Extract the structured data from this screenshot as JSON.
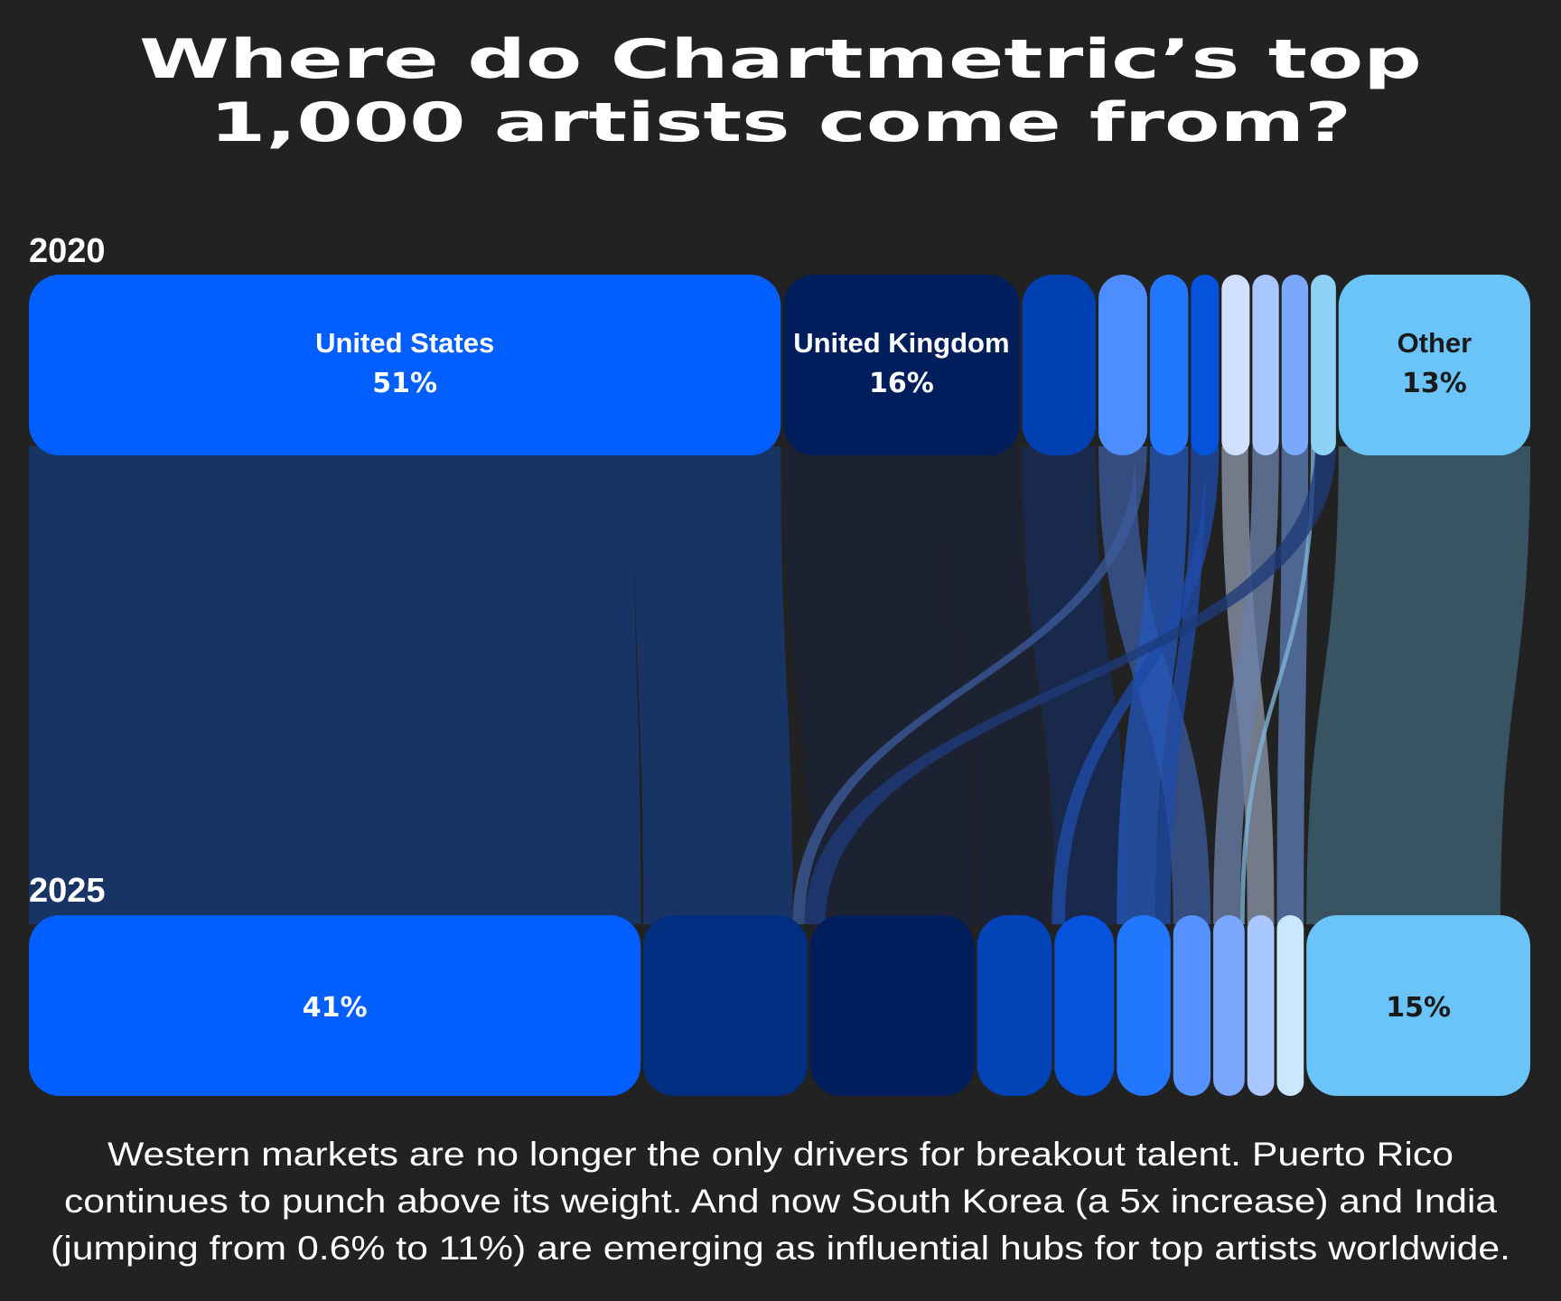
{
  "title": {
    "line1": "Where do Chartmetric’s top",
    "line2": "1,000 artists come from?"
  },
  "caption": {
    "line1": "Western markets are no longer the only drivers for breakout talent. Puerto Rico",
    "line2": "continues to punch above its weight. And now South Korea (a 5x increase) and India",
    "line3": "(jumping from 0.6% to 11%) are emerging as influential hubs for top artists worldwide."
  },
  "chart_data": {
    "type": "sankey",
    "years": [
      "2020",
      "2025"
    ],
    "nodes_2020": [
      {
        "id": "us",
        "name": "United States",
        "pct_label": "51%",
        "share": 51,
        "color": "#005ffe",
        "text_color": "#ffffff"
      },
      {
        "id": "uk",
        "name": "United Kingdom",
        "pct_label": "16%",
        "share": 16,
        "color": "#001e5b",
        "text_color": "#ffffff"
      },
      {
        "id": "c3",
        "name": "",
        "pct_label": "",
        "share": 5,
        "color": "#0040b0",
        "text_color": "#ffffff"
      },
      {
        "id": "c4",
        "name": "",
        "pct_label": "",
        "share": 3.3,
        "color": "#4d8dff",
        "text_color": "#ffffff"
      },
      {
        "id": "c5",
        "name": "",
        "pct_label": "",
        "share": 2.6,
        "color": "#2277ff",
        "text_color": "#ffffff"
      },
      {
        "id": "c6",
        "name": "",
        "pct_label": "",
        "share": 1.9,
        "color": "#0552dd",
        "text_color": "#ffffff"
      },
      {
        "id": "c7",
        "name": "",
        "pct_label": "",
        "share": 1.9,
        "color": "#d2e0ff",
        "text_color": "#111111"
      },
      {
        "id": "c8",
        "name": "",
        "pct_label": "",
        "share": 1.8,
        "color": "#a8c6ff",
        "text_color": "#111111"
      },
      {
        "id": "c9",
        "name": "",
        "pct_label": "",
        "share": 1.8,
        "color": "#7aa8ff",
        "text_color": "#111111"
      },
      {
        "id": "c10",
        "name": "",
        "pct_label": "",
        "share": 1.7,
        "color": "#8ed2f7",
        "text_color": "#111111"
      },
      {
        "id": "other",
        "name": "Other",
        "pct_label": "13%",
        "share": 13,
        "color": "#6ac4f8",
        "text_color": "#1a1a1a"
      }
    ],
    "nodes_2025": [
      {
        "id": "us",
        "name": "",
        "pct_label": "41%",
        "share": 41,
        "color": "#005ffe",
        "text_color": "#ffffff"
      },
      {
        "id": "c3",
        "name": "",
        "pct_label": "",
        "share": 11,
        "color": "#002e80",
        "text_color": "#ffffff"
      },
      {
        "id": "uk",
        "name": "",
        "pct_label": "",
        "share": 11,
        "color": "#001e5b",
        "text_color": "#ffffff"
      },
      {
        "id": "c6",
        "name": "",
        "pct_label": "",
        "share": 5,
        "color": "#0044b8",
        "text_color": "#ffffff"
      },
      {
        "id": "c5",
        "name": "",
        "pct_label": "",
        "share": 4,
        "color": "#0552dd",
        "text_color": "#ffffff"
      },
      {
        "id": "c4",
        "name": "",
        "pct_label": "",
        "share": 3.6,
        "color": "#2277ff",
        "text_color": "#ffffff"
      },
      {
        "id": "c8",
        "name": "",
        "pct_label": "",
        "share": 2.5,
        "color": "#5592ff",
        "text_color": "#111111"
      },
      {
        "id": "c9",
        "name": "",
        "pct_label": "",
        "share": 2.1,
        "color": "#7aa8ff",
        "text_color": "#111111"
      },
      {
        "id": "c7",
        "name": "",
        "pct_label": "",
        "share": 1.8,
        "color": "#a8c6ff",
        "text_color": "#111111"
      },
      {
        "id": "c10",
        "name": "",
        "pct_label": "",
        "share": 1.8,
        "color": "#c9e8fc",
        "text_color": "#111111"
      },
      {
        "id": "other",
        "name": "",
        "pct_label": "15%",
        "share": 15,
        "color": "#6ac4f8",
        "text_color": "#1a1a1a"
      }
    ],
    "flows": [
      {
        "from": "us",
        "to": "us",
        "share": 41,
        "color": "#163a78"
      },
      {
        "from": "us",
        "to": "c3",
        "share": 10,
        "color": "#163a78"
      },
      {
        "from": "uk",
        "to": "uk",
        "share": 11,
        "color": "#1b2237"
      },
      {
        "from": "uk",
        "to": "c6",
        "share": 5,
        "color": "#1b2237"
      },
      {
        "from": "c3",
        "to": "c5",
        "share": 5,
        "color": "#162b58"
      },
      {
        "from": "c4",
        "to": "c8",
        "share": 2.5,
        "color": "#3a5a98"
      },
      {
        "from": "c4",
        "to": "c3",
        "share": 0.8,
        "color": "#3a5a98"
      },
      {
        "from": "c5",
        "to": "c4",
        "share": 2.6,
        "color": "#2456b8"
      },
      {
        "from": "c6",
        "to": "c4",
        "share": 1.0,
        "color": "#1f4aa8"
      },
      {
        "from": "c6",
        "to": "c6",
        "share": 0.9,
        "color": "#1f4aa8"
      },
      {
        "from": "c7",
        "to": "c7",
        "share": 1.8,
        "color": "#8a93a6"
      },
      {
        "from": "c8",
        "to": "c9",
        "share": 1.8,
        "color": "#6a7fa8"
      },
      {
        "from": "c9",
        "to": "c10",
        "share": 1.8,
        "color": "#5a7ab2"
      },
      {
        "from": "c10",
        "to": "c9",
        "share": 0.3,
        "color": "#7fb4d8"
      },
      {
        "from": "c10",
        "to": "c3",
        "share": 1.4,
        "color": "#1d3b7a"
      },
      {
        "from": "other",
        "to": "other",
        "share": 13,
        "color": "#3f6175"
      }
    ]
  }
}
